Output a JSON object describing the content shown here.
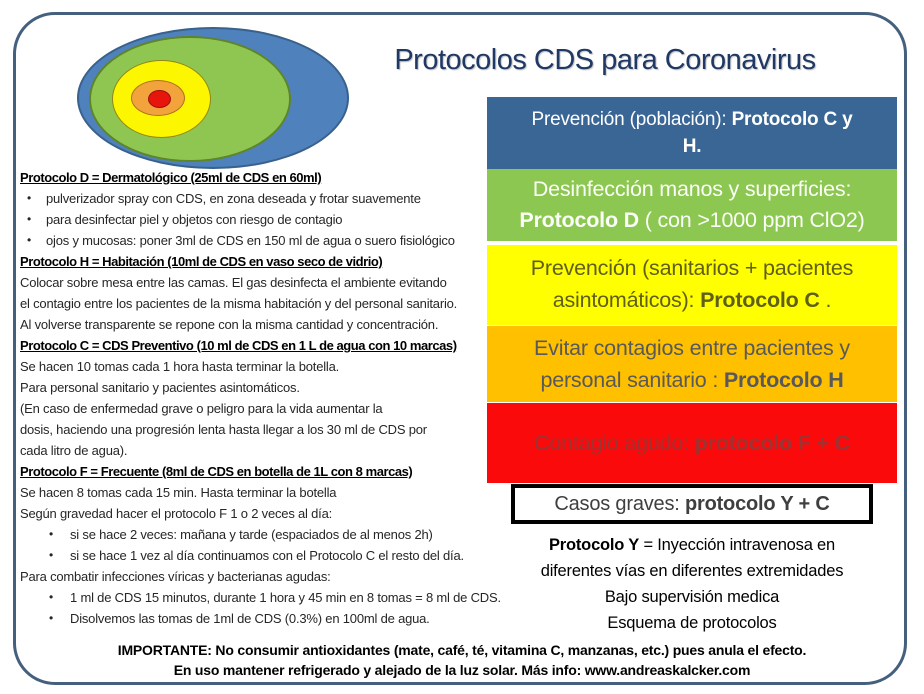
{
  "page": {
    "title": "Protocolos CDS para Coronavirus",
    "title_color": "#203864",
    "border_color": "#44607E"
  },
  "venn": {
    "rings": [
      {
        "key": "blue-outer",
        "fill": "#4F81BD",
        "stroke": "#38618C"
      },
      {
        "key": "green",
        "fill": "#8FC652",
        "stroke": "#5E8529"
      },
      {
        "key": "yellow",
        "fill": "#FCF600",
        "stroke": "#948613"
      },
      {
        "key": "orange",
        "fill": "#F2A33C",
        "stroke": "#B06F1B"
      },
      {
        "key": "red-center",
        "fill": "#E8150D",
        "stroke": "#9E0E0E"
      }
    ]
  },
  "left_column": {
    "lines": [
      {
        "type": "header",
        "text": "Protocolo D = Dermatológico (25ml de CDS en 60ml)"
      },
      {
        "type": "b1",
        "text": "pulverizador spray con CDS, en zona deseada y frotar suavemente"
      },
      {
        "type": "b1",
        "text": "para desinfectar piel y objetos con riesgo de contagio"
      },
      {
        "type": "b1",
        "text": "ojos y mucosas: poner 3ml de CDS en 150 ml de agua o suero fisiológico"
      },
      {
        "type": "header",
        "text": "Protocolo H = Habitación (10ml de CDS en vaso seco de vidrio)"
      },
      {
        "type": "body",
        "text": "Colocar sobre mesa entre las camas. El gas desinfecta el ambiente evitando"
      },
      {
        "type": "body",
        "text": " el contagio entre los pacientes de la misma habitación y del personal sanitario."
      },
      {
        "type": "body",
        "text": "Al volverse transparente se repone con la misma cantidad y concentración."
      },
      {
        "type": "header",
        "text": "Protocolo C = CDS Preventivo (10 ml de CDS en 1 L de agua con 10 marcas)"
      },
      {
        "type": "body",
        "text": "Se hacen 10 tomas cada 1 hora hasta terminar la botella."
      },
      {
        "type": "body",
        "text": "Para personal sanitario y pacientes asintomáticos."
      },
      {
        "type": "body",
        "text": "(En caso de enfermedad grave o peligro para la vida aumentar la"
      },
      {
        "type": "body",
        "text": "dosis, haciendo una progresión lenta hasta llegar a los 30 ml de CDS por"
      },
      {
        "type": "body",
        "text": "cada litro de agua)."
      },
      {
        "type": "header",
        "text": "Protocolo F = Frecuente (8ml de CDS en botella de 1L con 8 marcas)"
      },
      {
        "type": "body",
        "text": "Se hacen 8 tomas cada 15 min. Hasta terminar la botella"
      },
      {
        "type": "body",
        "text": "Según gravedad hacer el protocolo F 1 o 2 veces al día:"
      },
      {
        "type": "b2",
        "text": "si se hace 2 veces: mañana y tarde (espaciados de al menos 2h)"
      },
      {
        "type": "b2",
        "text": "si se hace 1 vez al día continuamos con el Protocolo C el resto del día."
      },
      {
        "type": "body",
        "text": "Para combatir infecciones víricas y bacterianas agudas:"
      },
      {
        "type": "b2",
        "text": "1 ml de CDS 15 minutos, durante 1 hora y 45 min en 8 tomas = 8 ml de CDS."
      },
      {
        "type": "b2",
        "text": "Disolvemos las tomas de 1ml de CDS (0.3%) en 100ml de agua."
      }
    ]
  },
  "right_column": {
    "boxes": [
      {
        "key": "prevencion-poblacion",
        "variant": "box-blue",
        "bg": "#3A6695",
        "fg": "#FFFFFF",
        "parts": [
          {
            "text": "Prevención (población): ",
            "bold": false
          },
          {
            "text": "Protocolo C y H.",
            "bold": true
          }
        ]
      },
      {
        "key": "desinfeccion-manos",
        "variant": "box-green",
        "bg": "#8CC751",
        "fg": "#FCFEF8",
        "parts": [
          {
            "text": "Desinfección manos y superficies: ",
            "bold": false
          },
          {
            "text": "Protocolo D",
            "bold": true
          },
          {
            "text": " ( con >1000 ppm ClO2)",
            "bold": false
          }
        ]
      },
      {
        "key": "prevencion-sanitarios",
        "variant": "box-yellow",
        "bg": "#FFFF00",
        "fg": "#5F5F18",
        "parts": [
          {
            "text": "Prevención (sanitarios + pacientes asintomáticos): ",
            "bold": false
          },
          {
            "text": "Protocolo C",
            "bold": true
          },
          {
            "text": " .",
            "bold": false
          }
        ]
      },
      {
        "key": "evitar-contagios",
        "variant": "box-orange",
        "bg": "#FFC000",
        "fg": "#595959",
        "parts": [
          {
            "text": "Evitar contagios entre pacientes y personal sanitario : ",
            "bold": false
          },
          {
            "text": "Protocolo H",
            "bold": true
          }
        ]
      },
      {
        "key": "contagio-agudo",
        "variant": "box-red",
        "bg": "#FA0A0A",
        "fg": "#9C3434",
        "parts": [
          {
            "text": "Contagio agudo: ",
            "bold": false
          },
          {
            "text": "protocolo F + C",
            "bold": true
          }
        ]
      },
      {
        "key": "casos-graves",
        "variant": "box-outlined",
        "bg": "#FFFFFF",
        "fg": "#3F3F3F",
        "border": "#000000",
        "parts": [
          {
            "text": "Casos graves: ",
            "bold": false
          },
          {
            "text": "protocolo Y + C",
            "bold": true
          }
        ]
      }
    ],
    "protocol_y_note": {
      "lines": [
        {
          "parts": [
            {
              "text": "Protocolo Y",
              "bold": true
            },
            {
              "text": " = Inyección intravenosa en",
              "bold": false
            }
          ]
        },
        {
          "parts": [
            {
              "text": "diferentes vías en diferentes extremidades",
              "bold": false
            }
          ]
        },
        {
          "parts": [
            {
              "text": "Bajo supervisión medica",
              "bold": false
            }
          ]
        },
        {
          "parts": [
            {
              "text": "Esquema de protocolos",
              "bold": false
            }
          ]
        }
      ]
    }
  },
  "footer": {
    "lines": [
      "IMPORTANTE: No consumir antioxidantes  (mate, café, té, vitamina C, manzanas, etc.) pues anula el efecto.",
      "En uso mantener refrigerado y alejado de la luz solar.  Más info: www.andreaskalcker.com"
    ]
  }
}
